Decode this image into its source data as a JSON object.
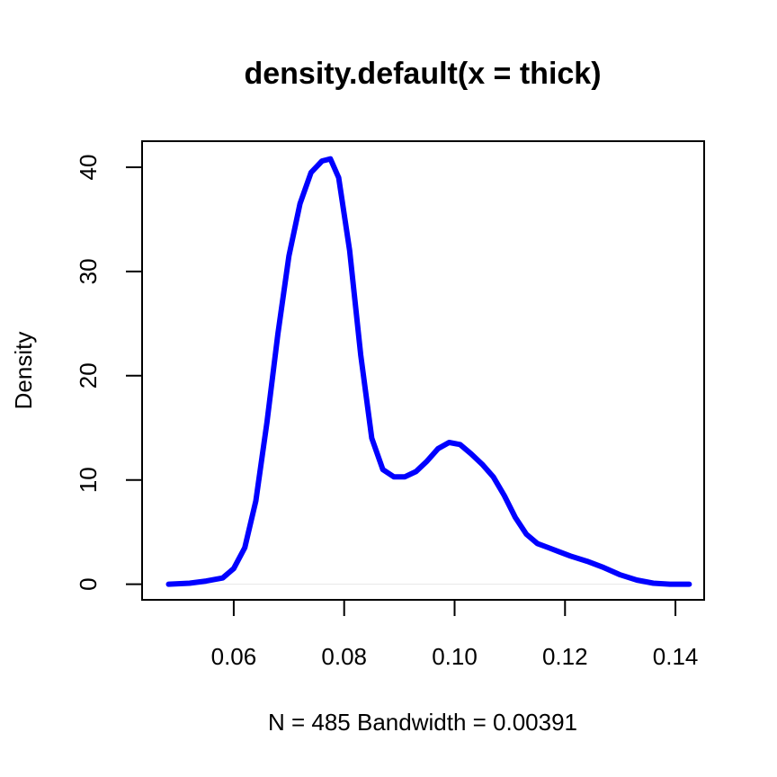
{
  "chart_data": {
    "type": "line",
    "title": "density.default(x = thick)",
    "xlabel": "N = 485   Bandwidth = 0.00391",
    "ylabel": "Density",
    "xlim": [
      0.0434,
      0.1452
    ],
    "ylim": [
      -1.5,
      42.5
    ],
    "x_ticks": [
      0.06,
      0.08,
      0.1,
      0.12,
      0.14
    ],
    "x_tick_labels": [
      "0.06",
      "0.08",
      "0.10",
      "0.12",
      "0.14"
    ],
    "y_ticks": [
      0,
      10,
      20,
      30,
      40
    ],
    "y_tick_labels": [
      "0",
      "10",
      "20",
      "30",
      "40"
    ],
    "grid": false,
    "baseline": 0,
    "series": [
      {
        "color": "#0000ff",
        "x": [
          0.0482,
          0.052,
          0.055,
          0.058,
          0.06,
          0.062,
          0.064,
          0.066,
          0.068,
          0.07,
          0.072,
          0.074,
          0.076,
          0.0775,
          0.079,
          0.081,
          0.083,
          0.085,
          0.087,
          0.089,
          0.091,
          0.093,
          0.095,
          0.097,
          0.099,
          0.101,
          0.103,
          0.105,
          0.107,
          0.109,
          0.111,
          0.113,
          0.115,
          0.117,
          0.119,
          0.121,
          0.124,
          0.127,
          0.13,
          0.133,
          0.136,
          0.139,
          0.1425
        ],
        "values": [
          0.0,
          0.1,
          0.3,
          0.6,
          1.5,
          3.5,
          8.0,
          15.5,
          24.0,
          31.5,
          36.5,
          39.5,
          40.6,
          40.8,
          39.0,
          32.0,
          22.0,
          14.0,
          11.0,
          10.3,
          10.3,
          10.8,
          11.8,
          13.0,
          13.6,
          13.4,
          12.5,
          11.5,
          10.3,
          8.5,
          6.4,
          4.8,
          3.9,
          3.5,
          3.1,
          2.7,
          2.2,
          1.6,
          0.9,
          0.4,
          0.1,
          0.0,
          0.0
        ]
      }
    ]
  }
}
